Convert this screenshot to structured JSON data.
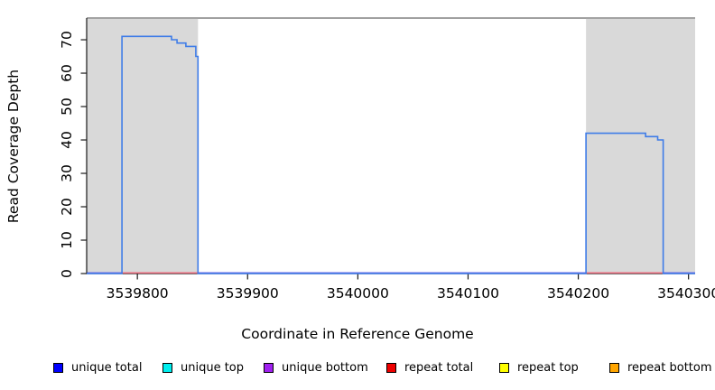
{
  "chart_data": {
    "type": "line",
    "subtype": "step-coverage",
    "title": "",
    "xlabel": "Coordinate in Reference Genome",
    "ylabel": "Read Coverage Depth",
    "xlim": [
      3539754,
      3540306
    ],
    "ylim": [
      0,
      76.5
    ],
    "x_ticks": [
      3539800,
      3539900,
      3540000,
      3540100,
      3540200,
      3540300
    ],
    "y_ticks": [
      0,
      10,
      20,
      30,
      40,
      50,
      60,
      70
    ],
    "grid": false,
    "legend_position": "bottom",
    "colors": {
      "repeat_region": "#D9D9D9",
      "axis": "#1a1a1a",
      "box": "#808080",
      "text": "#000000"
    },
    "repeat_regions": [
      [
        3539754,
        3539855
      ],
      [
        3540207,
        3540306
      ]
    ],
    "series": [
      {
        "name": "unique total",
        "plot_color": "#3E7CE8",
        "steps": [
          [
            3539754,
            0
          ],
          [
            3539786,
            0
          ],
          [
            3539786,
            71
          ],
          [
            3539831,
            71
          ],
          [
            3539831,
            70
          ],
          [
            3539836,
            70
          ],
          [
            3539836,
            69
          ],
          [
            3539844,
            69
          ],
          [
            3539844,
            68
          ],
          [
            3539853,
            68
          ],
          [
            3539853,
            65
          ],
          [
            3539855,
            65
          ],
          [
            3539855,
            0
          ],
          [
            3540207,
            0
          ],
          [
            3540207,
            42
          ],
          [
            3540261,
            42
          ],
          [
            3540261,
            41
          ],
          [
            3540272,
            41
          ],
          [
            3540272,
            40
          ],
          [
            3540277,
            40
          ],
          [
            3540277,
            0
          ],
          [
            3540306,
            0
          ]
        ]
      },
      {
        "name": "unique top",
        "constant": 0
      },
      {
        "name": "unique bottom",
        "constant": 0
      },
      {
        "name": "repeat total",
        "constant": 0
      },
      {
        "name": "repeat top",
        "constant": 0
      },
      {
        "name": "repeat bottom",
        "constant": 0
      }
    ],
    "zero_line": {
      "color": "#6E6AE6",
      "repeat_color": "#E8697B",
      "repeat_segments": [
        [
          3539786,
          3539855
        ],
        [
          3540207,
          3540277
        ]
      ]
    },
    "legend": [
      {
        "label": "unique total",
        "color": "#0000FF"
      },
      {
        "label": "unique top",
        "color": "#00EEEE"
      },
      {
        "label": "unique bottom",
        "color": "#A020F0"
      },
      {
        "label": "repeat total",
        "color": "#EE0000"
      },
      {
        "label": "repeat top",
        "color": "#FFFF00"
      },
      {
        "label": "repeat bottom",
        "color": "#FFA500"
      }
    ]
  }
}
